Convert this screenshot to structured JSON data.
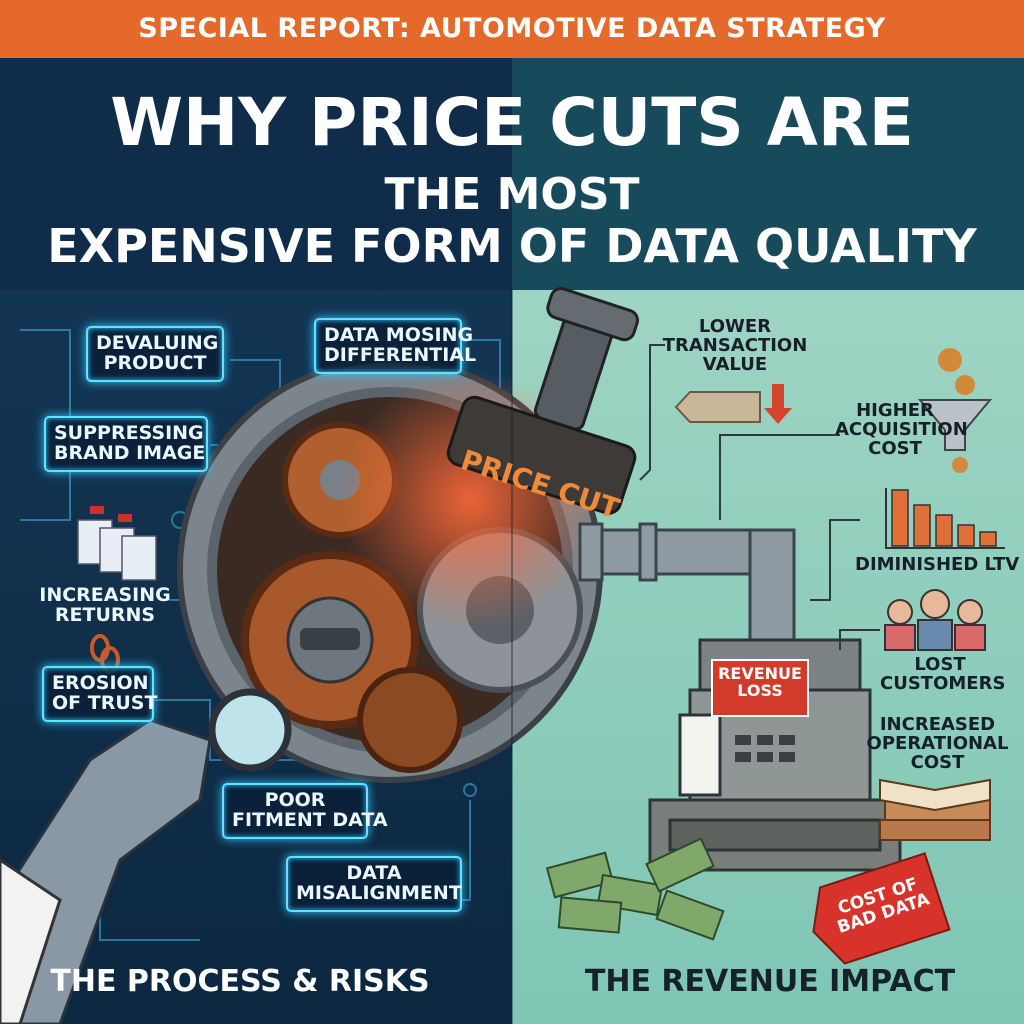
{
  "header": {
    "banner": "SPECIAL REPORT: AUTOMOTIVE DATA STRATEGY",
    "title": [
      "WHY PRICE CUTS ARE",
      "THE MOST",
      "EXPENSIVE FORM OF DATA QUALITY"
    ]
  },
  "left_panel": {
    "heading": "THE PROCESS & RISKS",
    "labels": [
      {
        "lines": [
          "DEVALUING",
          "PRODUCT"
        ]
      },
      {
        "lines": [
          "DATA MOSING",
          "DIFFERENTIAL"
        ]
      },
      {
        "lines": [
          "SUPPRESSING",
          "BRAND IMAGE"
        ]
      },
      {
        "lines": [
          "INCREASING",
          "RETURNS"
        ]
      },
      {
        "lines": [
          "EROSION",
          "OF TRUST"
        ]
      },
      {
        "lines": [
          "POOR",
          "FITMENT DATA"
        ]
      },
      {
        "lines": [
          "DATA",
          "MISALIGNMENT"
        ]
      }
    ],
    "stamp": "PRICE CUT"
  },
  "right_panel": {
    "heading": "THE REVENUE IMPACT",
    "labels": [
      {
        "lines": [
          "LOWER",
          "TRANSACTION",
          "VALUE"
        ]
      },
      {
        "lines": [
          "HIGHER",
          "ACQUISITION",
          "COST"
        ]
      },
      {
        "lines": [
          "DIMINISHED LTV"
        ]
      },
      {
        "lines": [
          "LOST",
          "CUSTOMERS"
        ]
      },
      {
        "lines": [
          "INCREASED",
          "OPERATIONAL",
          "COST"
        ]
      }
    ],
    "register_sign": [
      "REVENUE",
      "LOSS"
    ],
    "tag": [
      "COST OF",
      "BAD DATA"
    ]
  }
}
